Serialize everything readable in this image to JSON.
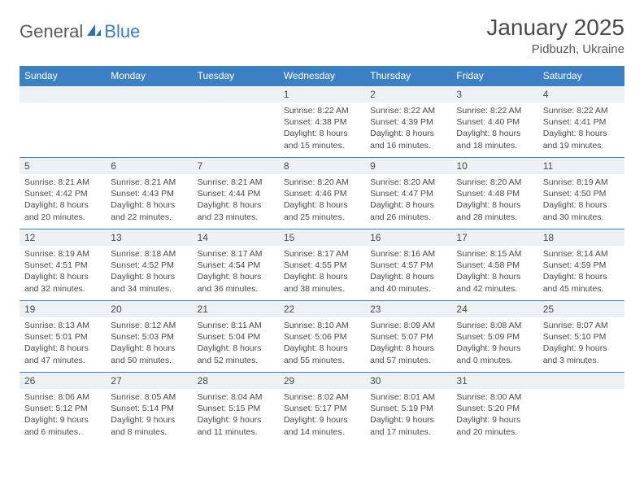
{
  "brand": {
    "part1": "General",
    "part2": "Blue"
  },
  "title": "January 2025",
  "location": "Pidbuzh, Ukraine",
  "colors": {
    "header_bg": "#3b7fc4",
    "header_text": "#ffffff",
    "daynum_bg": "#eef1f3",
    "text": "#4a4a4a",
    "border": "#3b7fc4",
    "logo_gray": "#5a5a5a",
    "logo_blue": "#3b7fc4"
  },
  "weekdays": [
    "Sunday",
    "Monday",
    "Tuesday",
    "Wednesday",
    "Thursday",
    "Friday",
    "Saturday"
  ],
  "weeks": [
    [
      null,
      null,
      null,
      {
        "n": "1",
        "sr": "8:22 AM",
        "ss": "4:38 PM",
        "dh": "8",
        "dm": "15"
      },
      {
        "n": "2",
        "sr": "8:22 AM",
        "ss": "4:39 PM",
        "dh": "8",
        "dm": "16"
      },
      {
        "n": "3",
        "sr": "8:22 AM",
        "ss": "4:40 PM",
        "dh": "8",
        "dm": "18"
      },
      {
        "n": "4",
        "sr": "8:22 AM",
        "ss": "4:41 PM",
        "dh": "8",
        "dm": "19"
      }
    ],
    [
      {
        "n": "5",
        "sr": "8:21 AM",
        "ss": "4:42 PM",
        "dh": "8",
        "dm": "20"
      },
      {
        "n": "6",
        "sr": "8:21 AM",
        "ss": "4:43 PM",
        "dh": "8",
        "dm": "22"
      },
      {
        "n": "7",
        "sr": "8:21 AM",
        "ss": "4:44 PM",
        "dh": "8",
        "dm": "23"
      },
      {
        "n": "8",
        "sr": "8:20 AM",
        "ss": "4:46 PM",
        "dh": "8",
        "dm": "25"
      },
      {
        "n": "9",
        "sr": "8:20 AM",
        "ss": "4:47 PM",
        "dh": "8",
        "dm": "26"
      },
      {
        "n": "10",
        "sr": "8:20 AM",
        "ss": "4:48 PM",
        "dh": "8",
        "dm": "28"
      },
      {
        "n": "11",
        "sr": "8:19 AM",
        "ss": "4:50 PM",
        "dh": "8",
        "dm": "30"
      }
    ],
    [
      {
        "n": "12",
        "sr": "8:19 AM",
        "ss": "4:51 PM",
        "dh": "8",
        "dm": "32"
      },
      {
        "n": "13",
        "sr": "8:18 AM",
        "ss": "4:52 PM",
        "dh": "8",
        "dm": "34"
      },
      {
        "n": "14",
        "sr": "8:17 AM",
        "ss": "4:54 PM",
        "dh": "8",
        "dm": "36"
      },
      {
        "n": "15",
        "sr": "8:17 AM",
        "ss": "4:55 PM",
        "dh": "8",
        "dm": "38"
      },
      {
        "n": "16",
        "sr": "8:16 AM",
        "ss": "4:57 PM",
        "dh": "8",
        "dm": "40"
      },
      {
        "n": "17",
        "sr": "8:15 AM",
        "ss": "4:58 PM",
        "dh": "8",
        "dm": "42"
      },
      {
        "n": "18",
        "sr": "8:14 AM",
        "ss": "4:59 PM",
        "dh": "8",
        "dm": "45"
      }
    ],
    [
      {
        "n": "19",
        "sr": "8:13 AM",
        "ss": "5:01 PM",
        "dh": "8",
        "dm": "47"
      },
      {
        "n": "20",
        "sr": "8:12 AM",
        "ss": "5:03 PM",
        "dh": "8",
        "dm": "50"
      },
      {
        "n": "21",
        "sr": "8:11 AM",
        "ss": "5:04 PM",
        "dh": "8",
        "dm": "52"
      },
      {
        "n": "22",
        "sr": "8:10 AM",
        "ss": "5:06 PM",
        "dh": "8",
        "dm": "55"
      },
      {
        "n": "23",
        "sr": "8:09 AM",
        "ss": "5:07 PM",
        "dh": "8",
        "dm": "57"
      },
      {
        "n": "24",
        "sr": "8:08 AM",
        "ss": "5:09 PM",
        "dh": "9",
        "dm": "0"
      },
      {
        "n": "25",
        "sr": "8:07 AM",
        "ss": "5:10 PM",
        "dh": "9",
        "dm": "3"
      }
    ],
    [
      {
        "n": "26",
        "sr": "8:06 AM",
        "ss": "5:12 PM",
        "dh": "9",
        "dm": "6"
      },
      {
        "n": "27",
        "sr": "8:05 AM",
        "ss": "5:14 PM",
        "dh": "9",
        "dm": "8"
      },
      {
        "n": "28",
        "sr": "8:04 AM",
        "ss": "5:15 PM",
        "dh": "9",
        "dm": "11"
      },
      {
        "n": "29",
        "sr": "8:02 AM",
        "ss": "5:17 PM",
        "dh": "9",
        "dm": "14"
      },
      {
        "n": "30",
        "sr": "8:01 AM",
        "ss": "5:19 PM",
        "dh": "9",
        "dm": "17"
      },
      {
        "n": "31",
        "sr": "8:00 AM",
        "ss": "5:20 PM",
        "dh": "9",
        "dm": "20"
      },
      null
    ]
  ],
  "labels": {
    "sunrise": "Sunrise:",
    "sunset": "Sunset:",
    "daylight": "Daylight:",
    "hours": "hours",
    "and": "and",
    "minutes": "minutes."
  }
}
